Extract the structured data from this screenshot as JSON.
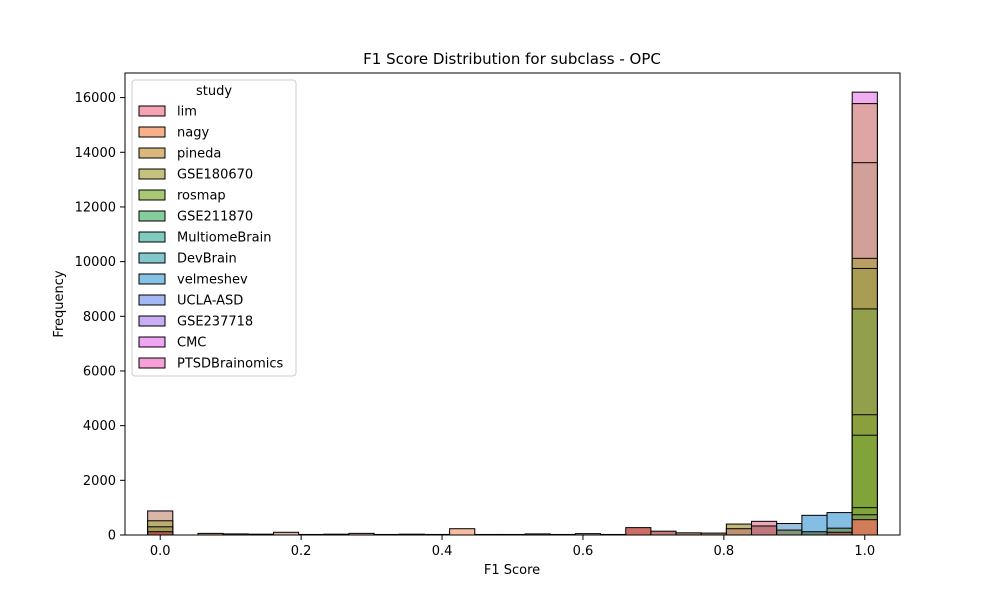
{
  "chart_data": {
    "type": "bar",
    "title": "F1 Score Distribution for subclass - OPC",
    "xlabel": "F1 Score",
    "ylabel": "Frequency",
    "xlim": [
      -0.05,
      1.05
    ],
    "ylim": [
      0,
      16900
    ],
    "xticks": [
      0.0,
      0.2,
      0.4,
      0.6,
      0.8,
      1.0
    ],
    "xtick_labels": [
      "0.0",
      "0.2",
      "0.4",
      "0.6",
      "0.8",
      "1.0"
    ],
    "yticks": [
      0,
      2000,
      4000,
      6000,
      8000,
      10000,
      12000,
      14000,
      16000
    ],
    "ytick_labels": [
      "0",
      "2000",
      "4000",
      "6000",
      "8000",
      "10000",
      "12000",
      "14000",
      "16000"
    ],
    "bin_width": 0.0357,
    "legend": {
      "title": "study",
      "placement": "upper-left",
      "entries": [
        {
          "name": "lim",
          "color": "#f5a3b5"
        },
        {
          "name": "nagy",
          "color": "#f7b08a"
        },
        {
          "name": "pineda",
          "color": "#d9b77c"
        },
        {
          "name": "GSE180670",
          "color": "#c5c27f"
        },
        {
          "name": "rosmap",
          "color": "#a9c873"
        },
        {
          "name": "GSE211870",
          "color": "#86cc9a"
        },
        {
          "name": "MultiomeBrain",
          "color": "#7fccbf"
        },
        {
          "name": "DevBrain",
          "color": "#80c8cc"
        },
        {
          "name": "velmeshev",
          "color": "#85c2e5"
        },
        {
          "name": "UCLA-ASD",
          "color": "#a3b8f5"
        },
        {
          "name": "GSE237718",
          "color": "#c9aef5"
        },
        {
          "name": "CMC",
          "color": "#f0a5f2"
        },
        {
          "name": "PTSDBrainomics",
          "color": "#f7a0d8"
        }
      ]
    },
    "bars": [
      {
        "x": 0.0,
        "value": 880,
        "color": "#d4a89a"
      },
      {
        "x": 0.0,
        "value": 520,
        "color": "#b5ab6a"
      },
      {
        "x": 0.0,
        "value": 300,
        "color": "#9c9a4e"
      },
      {
        "x": 0.0,
        "value": 120,
        "color": "#b2544a"
      },
      {
        "x": 0.0714,
        "value": 60,
        "color": "#c9a07a"
      },
      {
        "x": 0.1071,
        "value": 40,
        "color": "#d4a89a"
      },
      {
        "x": 0.1429,
        "value": 30,
        "color": "#d4a89a"
      },
      {
        "x": 0.1786,
        "value": 100,
        "color": "#d4a89a"
      },
      {
        "x": 0.2143,
        "value": 20,
        "color": "#d4a89a"
      },
      {
        "x": 0.25,
        "value": 30,
        "color": "#d4a89a"
      },
      {
        "x": 0.2857,
        "value": 60,
        "color": "#d4a89a"
      },
      {
        "x": 0.3214,
        "value": 20,
        "color": "#d4a89a"
      },
      {
        "x": 0.3571,
        "value": 30,
        "color": "#d4a89a"
      },
      {
        "x": 0.3929,
        "value": 20,
        "color": "#d4a89a"
      },
      {
        "x": 0.4286,
        "value": 230,
        "color": "#f3b08f"
      },
      {
        "x": 0.4643,
        "value": 20,
        "color": "#d4a89a"
      },
      {
        "x": 0.5,
        "value": 20,
        "color": "#d4a89a"
      },
      {
        "x": 0.5357,
        "value": 40,
        "color": "#d4a89a"
      },
      {
        "x": 0.5714,
        "value": 20,
        "color": "#d4a89a"
      },
      {
        "x": 0.6071,
        "value": 50,
        "color": "#d4a89a"
      },
      {
        "x": 0.6429,
        "value": 20,
        "color": "#d4a89a"
      },
      {
        "x": 0.6786,
        "value": 270,
        "color": "#c4554a"
      },
      {
        "x": 0.7143,
        "value": 140,
        "color": "#b9655a"
      },
      {
        "x": 0.75,
        "value": 80,
        "color": "#9a7a66"
      },
      {
        "x": 0.7857,
        "value": 70,
        "color": "#9a7a66"
      },
      {
        "x": 0.8214,
        "value": 400,
        "color": "#b5ab6a"
      },
      {
        "x": 0.8214,
        "value": 230,
        "color": "#c08a6e"
      },
      {
        "x": 0.8571,
        "value": 500,
        "color": "#e99aaa"
      },
      {
        "x": 0.8571,
        "value": 330,
        "color": "#b66e70"
      },
      {
        "x": 0.8929,
        "value": 420,
        "color": "#8ab6d8"
      },
      {
        "x": 0.8929,
        "value": 180,
        "color": "#7f8c68"
      },
      {
        "x": 0.9286,
        "value": 720,
        "color": "#70b3df"
      },
      {
        "x": 0.9286,
        "value": 120,
        "color": "#5f7f66"
      },
      {
        "x": 0.9643,
        "value": 820,
        "color": "#70b3df"
      },
      {
        "x": 0.9643,
        "value": 250,
        "color": "#6b9a72"
      },
      {
        "x": 0.9643,
        "value": 100,
        "color": "#a65a4c"
      },
      {
        "x": 1.0,
        "value": 16200,
        "color": "#ee9ff0"
      },
      {
        "x": 1.0,
        "value": 15780,
        "color": "#dba396"
      },
      {
        "x": 1.0,
        "value": 13620,
        "color": "#cf9f97"
      },
      {
        "x": 1.0,
        "value": 10120,
        "color": "#b69d5a"
      },
      {
        "x": 1.0,
        "value": 9750,
        "color": "#a49c4f"
      },
      {
        "x": 1.0,
        "value": 8270,
        "color": "#8ea04a"
      },
      {
        "x": 1.0,
        "value": 4400,
        "color": "#87a03a"
      },
      {
        "x": 1.0,
        "value": 3650,
        "color": "#80a33a"
      },
      {
        "x": 1.0,
        "value": 1000,
        "color": "#7fa63a"
      },
      {
        "x": 1.0,
        "value": 740,
        "color": "#7c9a54"
      },
      {
        "x": 1.0,
        "value": 560,
        "color": "#e0785a"
      }
    ]
  }
}
